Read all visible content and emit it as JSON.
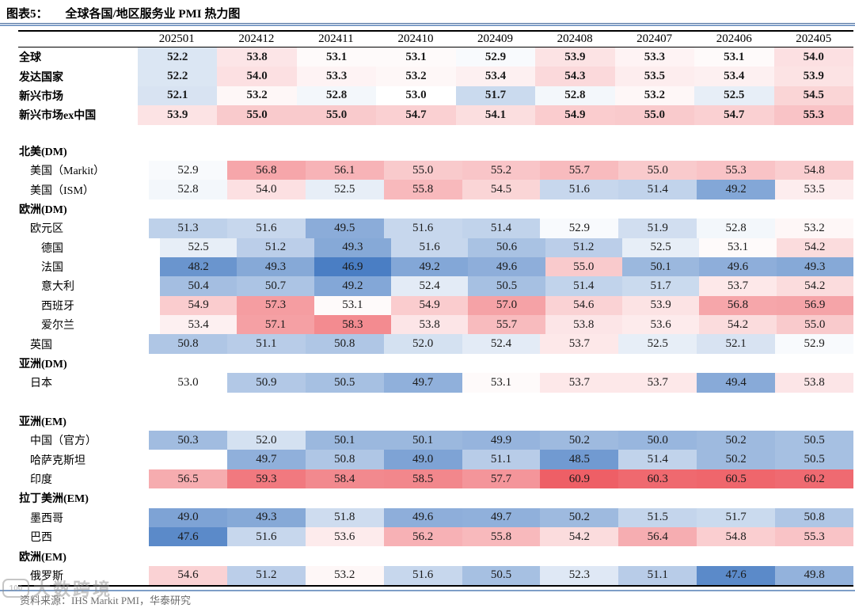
{
  "figure": {
    "label": "图表5：",
    "title": "全球各国/地区服务业 PMI 热力图"
  },
  "source": "资料来源：IHS Markit PMI，华泰研究",
  "watermark": {
    "logo_text": "100",
    "text": "大数跨境"
  },
  "chart_data": {
    "type": "heatmap",
    "title": "全球各国/地区服务业 PMI 热力图",
    "columns": [
      "202501",
      "202412",
      "202411",
      "202410",
      "202409",
      "202408",
      "202407",
      "202406",
      "202405"
    ],
    "colormap": {
      "center": 53.0,
      "blue_end": 46.9,
      "red_end": 60.9,
      "blue_color": "#4a7ec4",
      "red_color": "#ee5f66",
      "white": "#ffffff",
      "gamma": 0.8
    },
    "rows": [
      {
        "type": "data",
        "label": "全球",
        "bold": true,
        "indent": 0,
        "values": [
          52.2,
          53.8,
          53.1,
          53.1,
          52.9,
          53.9,
          53.3,
          53.1,
          54.0
        ]
      },
      {
        "type": "data",
        "label": "发达国家",
        "bold": true,
        "indent": 0,
        "values": [
          52.2,
          54.0,
          53.3,
          53.2,
          53.4,
          54.3,
          53.5,
          53.4,
          53.9
        ]
      },
      {
        "type": "data",
        "label": "新兴市场",
        "bold": true,
        "indent": 0,
        "values": [
          52.1,
          53.2,
          52.8,
          53.0,
          51.7,
          52.8,
          53.2,
          52.5,
          54.5
        ]
      },
      {
        "type": "data",
        "label": "新兴市场ex中国",
        "bold": true,
        "indent": 0,
        "values": [
          53.9,
          55.0,
          55.0,
          54.7,
          54.1,
          54.9,
          55.0,
          54.7,
          55.3
        ]
      },
      {
        "type": "spacer",
        "height": 21
      },
      {
        "type": "section",
        "label": "北美(DM)"
      },
      {
        "type": "data",
        "label": "美国（Markit）",
        "indent": 1,
        "values": [
          52.9,
          56.8,
          56.1,
          55.0,
          55.2,
          55.7,
          55.0,
          55.3,
          54.8
        ]
      },
      {
        "type": "data",
        "label": "美国（ISM）",
        "indent": 1,
        "values": [
          52.8,
          54.0,
          52.5,
          55.8,
          54.5,
          51.6,
          51.4,
          49.2,
          53.5
        ]
      },
      {
        "type": "section",
        "label": "欧洲(DM)"
      },
      {
        "type": "data",
        "label": "欧元区",
        "indent": 1,
        "values": [
          51.3,
          51.6,
          49.5,
          51.6,
          51.4,
          52.9,
          51.9,
          52.8,
          53.2
        ]
      },
      {
        "type": "data",
        "label": "德国",
        "indent": 2,
        "values": [
          52.5,
          51.2,
          49.3,
          51.6,
          50.6,
          51.2,
          52.5,
          53.1,
          54.2
        ]
      },
      {
        "type": "data",
        "label": "法国",
        "indent": 2,
        "values": [
          48.2,
          49.3,
          46.9,
          49.2,
          49.6,
          55.0,
          50.1,
          49.6,
          49.3
        ]
      },
      {
        "type": "data",
        "label": "意大利",
        "indent": 2,
        "values": [
          50.4,
          50.7,
          49.2,
          52.4,
          50.5,
          51.4,
          51.7,
          53.7,
          54.2
        ]
      },
      {
        "type": "data",
        "label": "西班牙",
        "indent": 2,
        "values": [
          54.9,
          57.3,
          53.1,
          54.9,
          57.0,
          54.6,
          53.9,
          56.8,
          56.9
        ]
      },
      {
        "type": "data",
        "label": "爱尔兰",
        "indent": 2,
        "values": [
          53.4,
          57.1,
          58.3,
          53.8,
          55.7,
          53.8,
          53.6,
          54.2,
          55.0
        ]
      },
      {
        "type": "data",
        "label": "英国",
        "indent": 1,
        "values": [
          50.8,
          51.1,
          50.8,
          52.0,
          52.4,
          53.7,
          52.5,
          52.1,
          52.9
        ]
      },
      {
        "type": "section",
        "label": "亚洲(DM)"
      },
      {
        "type": "data",
        "label": "日本",
        "indent": 1,
        "values": [
          53.0,
          50.9,
          50.5,
          49.7,
          53.1,
          53.7,
          53.7,
          49.4,
          53.8
        ]
      },
      {
        "type": "spacer",
        "height": 24
      },
      {
        "type": "section",
        "label": "亚洲(EM)"
      },
      {
        "type": "data",
        "label": "中国（官方）",
        "indent": 1,
        "values": [
          50.3,
          52.0,
          50.1,
          50.1,
          49.9,
          50.2,
          50.0,
          50.2,
          50.5
        ]
      },
      {
        "type": "data",
        "label": "哈萨克斯坦",
        "indent": 1,
        "values": [
          null,
          49.7,
          50.8,
          49.0,
          51.1,
          48.5,
          51.4,
          50.2,
          50.5
        ]
      },
      {
        "type": "data",
        "label": "印度",
        "indent": 1,
        "values": [
          56.5,
          59.3,
          58.4,
          58.5,
          57.7,
          60.9,
          60.3,
          60.5,
          60.2
        ]
      },
      {
        "type": "section",
        "label": "拉丁美洲(EM)"
      },
      {
        "type": "data",
        "label": "墨西哥",
        "indent": 1,
        "values": [
          49.0,
          49.3,
          51.8,
          49.6,
          49.7,
          50.2,
          51.5,
          51.7,
          50.8
        ]
      },
      {
        "type": "data",
        "label": "巴西",
        "indent": 1,
        "values": [
          47.6,
          51.6,
          53.6,
          56.2,
          55.8,
          54.2,
          56.4,
          54.8,
          55.3
        ]
      },
      {
        "type": "section",
        "label": "欧洲(EM)"
      },
      {
        "type": "data",
        "label": "俄罗斯",
        "indent": 1,
        "values": [
          54.6,
          51.2,
          53.2,
          51.6,
          50.5,
          52.3,
          51.1,
          47.6,
          49.8
        ]
      }
    ]
  }
}
